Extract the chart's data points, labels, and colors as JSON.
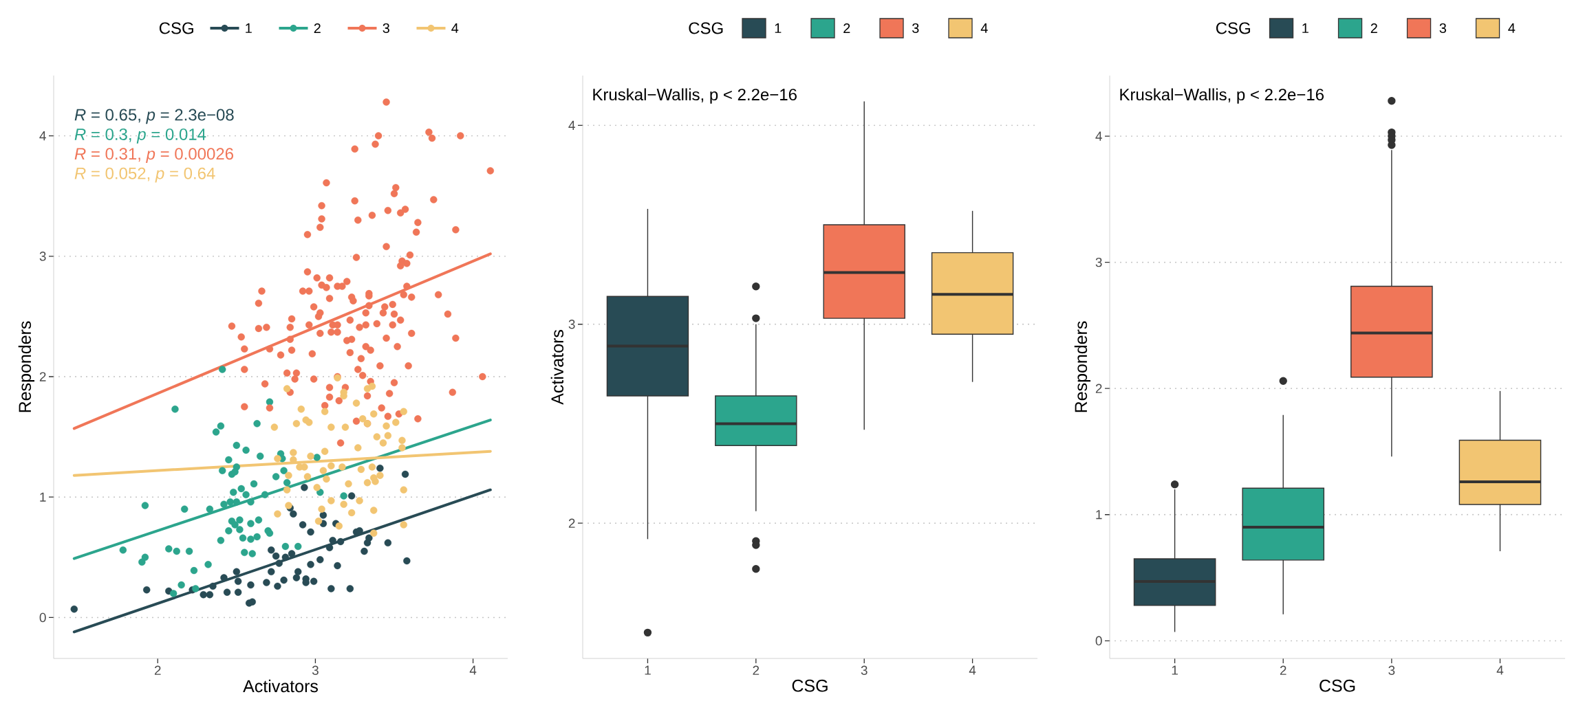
{
  "chart_data": [
    {
      "type": "scatter",
      "xlabel": "Activators",
      "ylabel": "Responders",
      "legend_title": "CSG",
      "legend": "top",
      "grid": "y",
      "marker": "circle",
      "xlim": [
        1.34,
        4.22
      ],
      "xticks": [
        2,
        3,
        4
      ],
      "ylim": [
        -0.34,
        4.5
      ],
      "yticks": [
        0,
        1,
        2,
        3,
        4
      ],
      "annotations": [
        "*R* = 0.65, *p* = 2.3e−08",
        "*R* = 0.3, *p* = 0.014",
        "*R* = 0.31, *p* = 0.00026",
        "*R* = 0.052, *p* = 0.64"
      ],
      "series": [
        {
          "name": "1",
          "type": "scatter",
          "color": "#284b55",
          "x": [
            1.47,
            1.93,
            2.07,
            2.22,
            2.29,
            2.33,
            2.35,
            2.42,
            2.44,
            2.5,
            2.51,
            2.51,
            2.59,
            2.58,
            2.6,
            2.69,
            2.72,
            2.76,
            2.8,
            2.72,
            2.75,
            2.77,
            2.81,
            2.85,
            2.89,
            2.88,
            2.94,
            2.94,
            2.99,
            2.97,
            3.03,
            3.09,
            3.14,
            3.1,
            3.22,
            3.11,
            3.16,
            3.26,
            3.28,
            3.34,
            3.33,
            3.31,
            3.46,
            3.58,
            3.57,
            3.41,
            3.23,
            2.93,
            3.05,
            3.05,
            2.97,
            2.92,
            2.86,
            2.84,
            3.13
          ],
          "values": [
            0.07,
            0.23,
            0.22,
            0.23,
            0.19,
            0.19,
            0.26,
            0.33,
            0.21,
            0.38,
            0.3,
            0.21,
            0.27,
            0.12,
            0.13,
            0.29,
            0.38,
            0.26,
            0.31,
            0.56,
            0.51,
            0.45,
            0.5,
            0.53,
            0.38,
            0.33,
            0.32,
            0.29,
            0.3,
            0.44,
            0.48,
            0.58,
            0.43,
            0.24,
            0.24,
            0.64,
            0.63,
            0.71,
            0.72,
            0.66,
            0.62,
            0.55,
            0.62,
            0.47,
            1.19,
            1.24,
            1.01,
            1.08,
            0.85,
            0.78,
            0.71,
            0.77,
            0.86,
            0.91,
            0.78
          ]
        },
        {
          "name": "2",
          "type": "scatter",
          "color": "#2ca58d",
          "x": [
            2.41,
            2.11,
            2.71,
            2.4,
            2.37,
            2.63,
            2.5,
            2.56,
            2.45,
            2.5,
            2.41,
            2.47,
            2.49,
            2.65,
            2.78,
            2.79,
            2.8,
            2.75,
            2.82,
            3.01,
            3.03,
            3.18,
            2.61,
            2.53,
            2.48,
            2.56,
            2.59,
            2.68,
            2.42,
            2.46,
            2.5,
            2.33,
            2.17,
            1.92,
            2.47,
            2.52,
            2.49,
            2.52,
            2.45,
            2.59,
            2.64,
            2.7,
            2.71,
            2.54,
            2.59,
            2.63,
            2.4,
            2.55,
            2.6,
            2.81,
            2.89,
            2.07,
            2.12,
            2.2,
            1.78,
            1.92,
            1.9,
            2.32,
            2.23,
            2.15,
            2.1,
            2.24
          ],
          "values": [
            2.06,
            1.73,
            1.79,
            1.59,
            1.54,
            1.61,
            1.43,
            1.39,
            1.31,
            1.25,
            1.22,
            1.19,
            1.21,
            1.34,
            1.36,
            1.32,
            1.22,
            1.17,
            1.12,
            1.33,
            1.04,
            1.01,
            1.11,
            1.07,
            1.04,
            1.02,
            0.96,
            1.02,
            0.94,
            0.96,
            0.96,
            0.9,
            0.9,
            0.93,
            0.8,
            0.81,
            0.77,
            0.73,
            0.72,
            0.78,
            0.81,
            0.72,
            0.7,
            0.66,
            0.65,
            0.67,
            0.64,
            0.54,
            0.53,
            0.59,
            0.59,
            0.57,
            0.55,
            0.55,
            0.56,
            0.5,
            0.46,
            0.44,
            0.39,
            0.27,
            0.2,
            0.24
          ]
        },
        {
          "name": "3",
          "type": "scatter",
          "color": "#f07658",
          "x": [
            3.45,
            3.4,
            3.38,
            3.72,
            3.74,
            3.92,
            3.25,
            4.11,
            3.07,
            3.51,
            3.5,
            3.25,
            3.75,
            3.04,
            3.04,
            3.03,
            3.27,
            3.36,
            3.46,
            3.54,
            3.57,
            3.65,
            3.64,
            3.89,
            2.95,
            3.45,
            3.26,
            3.6,
            3.55,
            3.58,
            3.54,
            2.95,
            3.01,
            3.09,
            3.2,
            3.14,
            3.17,
            3.04,
            3.07,
            2.92,
            2.96,
            2.66,
            2.64,
            3.09,
            3.23,
            3.24,
            3.34,
            3.34,
            3.58,
            3.56,
            3.61,
            3.78,
            2.99,
            3.03,
            3.02,
            3.34,
            3.44,
            3.49,
            3.32,
            3.43,
            3.5,
            3.54,
            3.84,
            2.85,
            2.84,
            2.96,
            3.11,
            3.14,
            3.22,
            3.28,
            3.32,
            3.39,
            3.49,
            2.47,
            2.64,
            2.69,
            2.53,
            2.55,
            2.71,
            2.78,
            2.85,
            2.84,
            2.98,
            3.03,
            3.1,
            3.14,
            3.2,
            3.23,
            3.22,
            3.32,
            3.35,
            3.29,
            3.45,
            3.52,
            3.61,
            3.89,
            3.41,
            3.59,
            3.27,
            3.3,
            2.55,
            2.82,
            2.88,
            2.87,
            2.99,
            3.14,
            2.68,
            2.84,
            3.09,
            3.19,
            3.09,
            3.15,
            3.35,
            3.5,
            3.47,
            3.33,
            4.06,
            3.87,
            2.55,
            2.71,
            3.06,
            3.42,
            3.46,
            3.53,
            3.26,
            3.33,
            3.65,
            3.16
          ],
          "values": [
            4.28,
            4.0,
            3.93,
            4.03,
            3.98,
            4.0,
            3.89,
            3.71,
            3.61,
            3.57,
            3.52,
            3.46,
            3.47,
            3.42,
            3.31,
            3.24,
            3.3,
            3.34,
            3.38,
            3.36,
            3.39,
            3.28,
            3.2,
            3.22,
            3.18,
            3.08,
            2.99,
            3.01,
            2.96,
            2.94,
            2.92,
            2.87,
            2.82,
            2.82,
            2.79,
            2.75,
            2.75,
            2.76,
            2.74,
            2.71,
            2.71,
            2.71,
            2.61,
            2.65,
            2.66,
            2.63,
            2.69,
            2.67,
            2.75,
            2.68,
            2.66,
            2.68,
            2.58,
            2.53,
            2.5,
            2.59,
            2.58,
            2.6,
            2.53,
            2.53,
            2.52,
            2.47,
            2.52,
            2.48,
            2.41,
            2.43,
            2.43,
            2.43,
            2.47,
            2.41,
            2.43,
            2.44,
            2.43,
            2.42,
            2.4,
            2.41,
            2.33,
            2.23,
            2.23,
            2.18,
            2.22,
            2.31,
            2.19,
            2.36,
            2.37,
            2.37,
            2.3,
            2.31,
            2.2,
            2.25,
            2.22,
            2.15,
            2.32,
            2.25,
            2.36,
            2.32,
            2.09,
            2.09,
            2.06,
            2.01,
            2.06,
            2.03,
            2.03,
            1.98,
            1.98,
            2.0,
            1.94,
            1.87,
            1.91,
            1.91,
            1.83,
            1.8,
            1.96,
            1.95,
            1.86,
            1.84,
            2.0,
            1.87,
            1.75,
            1.74,
            1.76,
            1.74,
            1.67,
            1.69,
            1.63,
            1.61,
            1.65,
            1.45
          ]
        },
        {
          "name": "4",
          "type": "scatter",
          "color": "#f2c572",
          "x": [
            2.82,
            3.18,
            3.18,
            3.14,
            3.26,
            3.33,
            3.36,
            3.06,
            2.91,
            2.88,
            2.94,
            2.96,
            2.74,
            3.1,
            3.19,
            3.3,
            3.33,
            3.37,
            3.45,
            3.51,
            3.56,
            3.39,
            3.43,
            3.46,
            3.55,
            3.55,
            3.27,
            3.06,
            2.86,
            2.76,
            2.86,
            2.97,
            2.9,
            2.93,
            2.95,
            2.83,
            3.05,
            3.1,
            3.17,
            3.07,
            3.29,
            3.36,
            3.41,
            3.37,
            3.38,
            3.33,
            3.21,
            3.01,
            3.56,
            2.82,
            3.1,
            3.18,
            3.28,
            2.76,
            2.83,
            3.04,
            3.23,
            3.37,
            3.02,
            3.15,
            3.56,
            3.37
          ],
          "values": [
            1.9,
            1.87,
            1.84,
            1.99,
            1.78,
            1.9,
            1.92,
            1.71,
            1.73,
            1.61,
            1.64,
            1.62,
            1.58,
            1.58,
            1.58,
            1.65,
            1.61,
            1.69,
            1.59,
            1.62,
            1.71,
            1.5,
            1.45,
            1.51,
            1.47,
            1.41,
            1.41,
            1.38,
            1.37,
            1.32,
            1.31,
            1.34,
            1.25,
            1.25,
            1.17,
            1.18,
            1.22,
            1.26,
            1.25,
            1.15,
            1.23,
            1.25,
            1.18,
            1.16,
            1.13,
            1.12,
            1.11,
            1.08,
            1.06,
            1.06,
            0.97,
            0.94,
            0.97,
            0.86,
            0.93,
            0.9,
            0.87,
            0.89,
            0.8,
            0.76,
            0.77,
            0.7
          ]
        },
        {
          "type": "line",
          "marker": "none",
          "color": "#284b55",
          "x": [
            1.47,
            4.11
          ],
          "values": [
            -0.12,
            1.06
          ]
        },
        {
          "type": "line",
          "marker": "none",
          "color": "#2ca58d",
          "x": [
            1.47,
            4.11
          ],
          "values": [
            0.49,
            1.64
          ]
        },
        {
          "type": "line",
          "marker": "none",
          "color": "#f07658",
          "x": [
            1.47,
            4.11
          ],
          "values": [
            1.57,
            3.02
          ]
        },
        {
          "type": "line",
          "marker": "none",
          "color": "#f2c572",
          "x": [
            1.47,
            4.11
          ],
          "values": [
            1.18,
            1.38
          ]
        }
      ]
    },
    {
      "type": "box",
      "xlabel": "CSG",
      "ylabel": "Activators",
      "legend_title": "CSG",
      "legend": "top",
      "grid": "y",
      "categories": [
        "1",
        "2",
        "3",
        "4"
      ],
      "ylim": [
        1.32,
        4.25
      ],
      "yticks": [
        2,
        3,
        4
      ],
      "annotations": [
        "Kruskal−Wallis, p < 2.2e−16"
      ],
      "series": [
        {
          "name": "1",
          "color": "#284b55",
          "boxes": [
            {
              "low": 1.92,
              "q1": 2.64,
              "median": 2.89,
              "q3": 3.14,
              "high": 3.58,
              "outliers": [
                1.45
              ]
            },
            null,
            null,
            null
          ]
        },
        {
          "name": "2",
          "color": "#2ca58d",
          "boxes": [
            null,
            {
              "low": 2.06,
              "q1": 2.39,
              "median": 2.5,
              "q3": 2.64,
              "high": 3.0,
              "outliers": [
                3.19,
                3.03,
                1.91,
                1.89,
                1.77
              ]
            },
            null,
            null
          ]
        },
        {
          "name": "3",
          "color": "#f07658",
          "boxes": [
            null,
            null,
            {
              "low": 2.47,
              "q1": 3.03,
              "median": 3.26,
              "q3": 3.5,
              "high": 4.12
            },
            null
          ]
        },
        {
          "name": "4",
          "color": "#f2c572",
          "boxes": [
            null,
            null,
            null,
            {
              "low": 2.71,
              "q1": 2.95,
              "median": 3.15,
              "q3": 3.36,
              "high": 3.57
            }
          ]
        }
      ]
    },
    {
      "type": "box",
      "xlabel": "CSG",
      "ylabel": "Responders",
      "legend_title": "CSG",
      "legend": "top",
      "grid": "y",
      "categories": [
        "1",
        "2",
        "3",
        "4"
      ],
      "ylim": [
        -0.14,
        4.48
      ],
      "yticks": [
        0,
        1,
        2,
        3,
        4
      ],
      "annotations": [
        "Kruskal−Wallis, p < 2.2e−16"
      ],
      "series": [
        {
          "name": "1",
          "color": "#284b55",
          "boxes": [
            {
              "low": 0.07,
              "q1": 0.28,
              "median": 0.47,
              "q3": 0.65,
              "high": 1.2,
              "outliers": [
                1.24
              ]
            },
            null,
            null,
            null
          ]
        },
        {
          "name": "2",
          "color": "#2ca58d",
          "boxes": [
            null,
            {
              "low": 0.21,
              "q1": 0.64,
              "median": 0.9,
              "q3": 1.21,
              "high": 1.79,
              "outliers": [
                2.06
              ]
            },
            null,
            null
          ]
        },
        {
          "name": "3",
          "color": "#f07658",
          "boxes": [
            null,
            null,
            {
              "low": 1.46,
              "q1": 2.09,
              "median": 2.44,
              "q3": 2.81,
              "high": 3.89,
              "outliers": [
                4.28,
                4.03,
                4.0,
                3.97,
                3.93
              ]
            },
            null
          ]
        },
        {
          "name": "4",
          "color": "#f2c572",
          "boxes": [
            null,
            null,
            null,
            {
              "low": 0.71,
              "q1": 1.08,
              "median": 1.26,
              "q3": 1.59,
              "high": 1.98
            }
          ]
        }
      ]
    }
  ]
}
